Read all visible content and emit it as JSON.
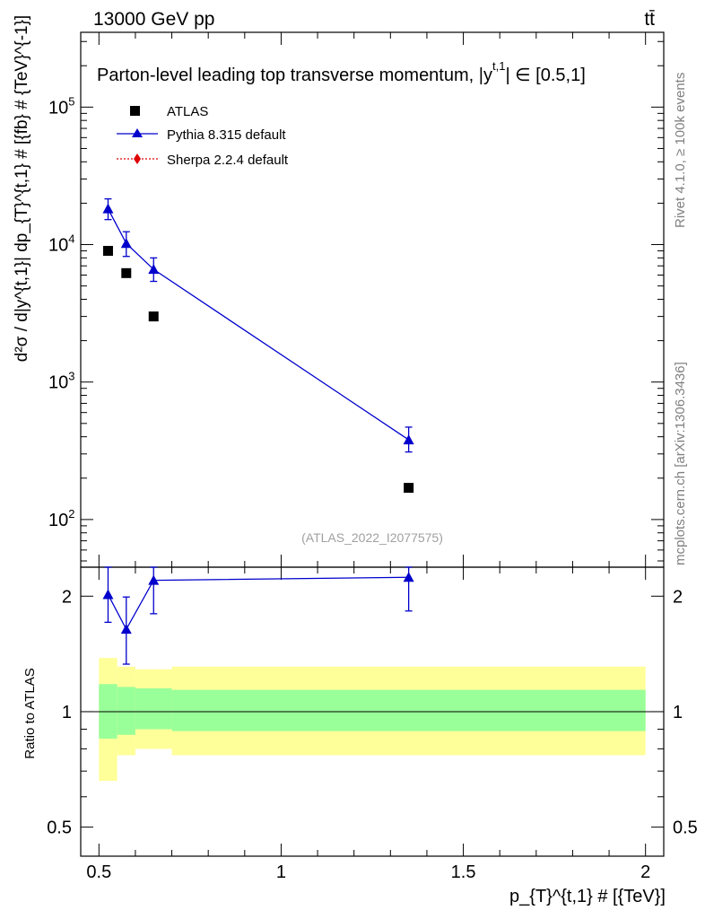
{
  "header": {
    "energy_label": "13000 GeV pp",
    "process_label": "tt̄",
    "rivet_label": "Rivet 4.1.0, ≥ 100k events",
    "mcplots_label": "mcplots.cern.ch [arXiv:1306.3436]"
  },
  "chart_data": [
    {
      "type": "scatter",
      "title": "Parton-level leading top transverse momentum, |y",
      "title_superscript": "t,1",
      "title_suffix": "| ∈ [0.5,1]",
      "analysis_label": "(ATLAS_2022_I2077575)",
      "ylabel": "d²σ / d|y^{t,1}| dp_{T}^{t,1} # [{fb} # {TeV}^{-1}]",
      "yscale": "log",
      "ylim": [
        45,
        350000
      ],
      "xlim": [
        0.45,
        2.05
      ],
      "y_ticks": [
        {
          "value": 100,
          "label": "10",
          "exp": "2"
        },
        {
          "value": 1000,
          "label": "10",
          "exp": "3"
        },
        {
          "value": 10000,
          "label": "10",
          "exp": "4"
        },
        {
          "value": 100000,
          "label": "10",
          "exp": "5"
        }
      ],
      "legend": {
        "position": "top-left",
        "entries": [
          "ATLAS",
          "Pythia 8.315 default",
          "Sherpa 2.2.4 default"
        ]
      },
      "series": [
        {
          "name": "ATLAS",
          "marker": "square",
          "color": "#000000",
          "x": [
            0.525,
            0.575,
            0.65,
            1.35
          ],
          "y": [
            9000,
            6200,
            3000,
            170
          ]
        },
        {
          "name": "Pythia 8.315 default",
          "marker": "triangle",
          "color": "#0000cc",
          "x": [
            0.525,
            0.575,
            0.65,
            1.35
          ],
          "y": [
            18200,
            10200,
            6600,
            380
          ],
          "yerr_low": [
            15200,
            8200,
            5400,
            310
          ],
          "yerr_high": [
            21500,
            12400,
            8000,
            470
          ]
        },
        {
          "name": "Sherpa 2.2.4 default",
          "marker": "diamond",
          "color": "#dd0000",
          "x": [],
          "y": []
        }
      ]
    },
    {
      "type": "line",
      "ylabel": "Ratio to ATLAS",
      "xlabel": "p_{T}^{t,1} # [{TeV}]",
      "xlim": [
        0.45,
        2.05
      ],
      "yscale": "log",
      "ylim": [
        0.42,
        2.38
      ],
      "x_ticks": [
        {
          "value": 0.5,
          "label": "0.5"
        },
        {
          "value": 1,
          "label": "1"
        },
        {
          "value": 1.5,
          "label": "1.5"
        },
        {
          "value": 2,
          "label": "2"
        }
      ],
      "y_ticks": [
        {
          "value": 0.5,
          "label": "0.5"
        },
        {
          "value": 1,
          "label": "1"
        },
        {
          "value": 2,
          "label": "2"
        }
      ],
      "bands": {
        "edges": [
          0.5,
          0.55,
          0.6,
          0.7,
          2.0
        ],
        "stat_low": [
          0.85,
          0.87,
          0.9,
          0.89
        ],
        "stat_high": [
          1.18,
          1.16,
          1.15,
          1.14
        ],
        "total_low": [
          0.66,
          0.77,
          0.8,
          0.77
        ],
        "total_high": [
          1.38,
          1.31,
          1.29,
          1.31
        ]
      },
      "series": [
        {
          "name": "Pythia 8.315 default",
          "color": "#0000cc",
          "x": [
            0.525,
            0.575,
            0.65,
            1.35
          ],
          "y": [
            2.02,
            1.64,
            2.2,
            2.24
          ],
          "yerr_low": [
            1.71,
            1.33,
            1.8,
            1.83
          ],
          "yerr_high": [
            2.38,
            1.99,
            2.38,
            2.38
          ]
        }
      ]
    }
  ]
}
